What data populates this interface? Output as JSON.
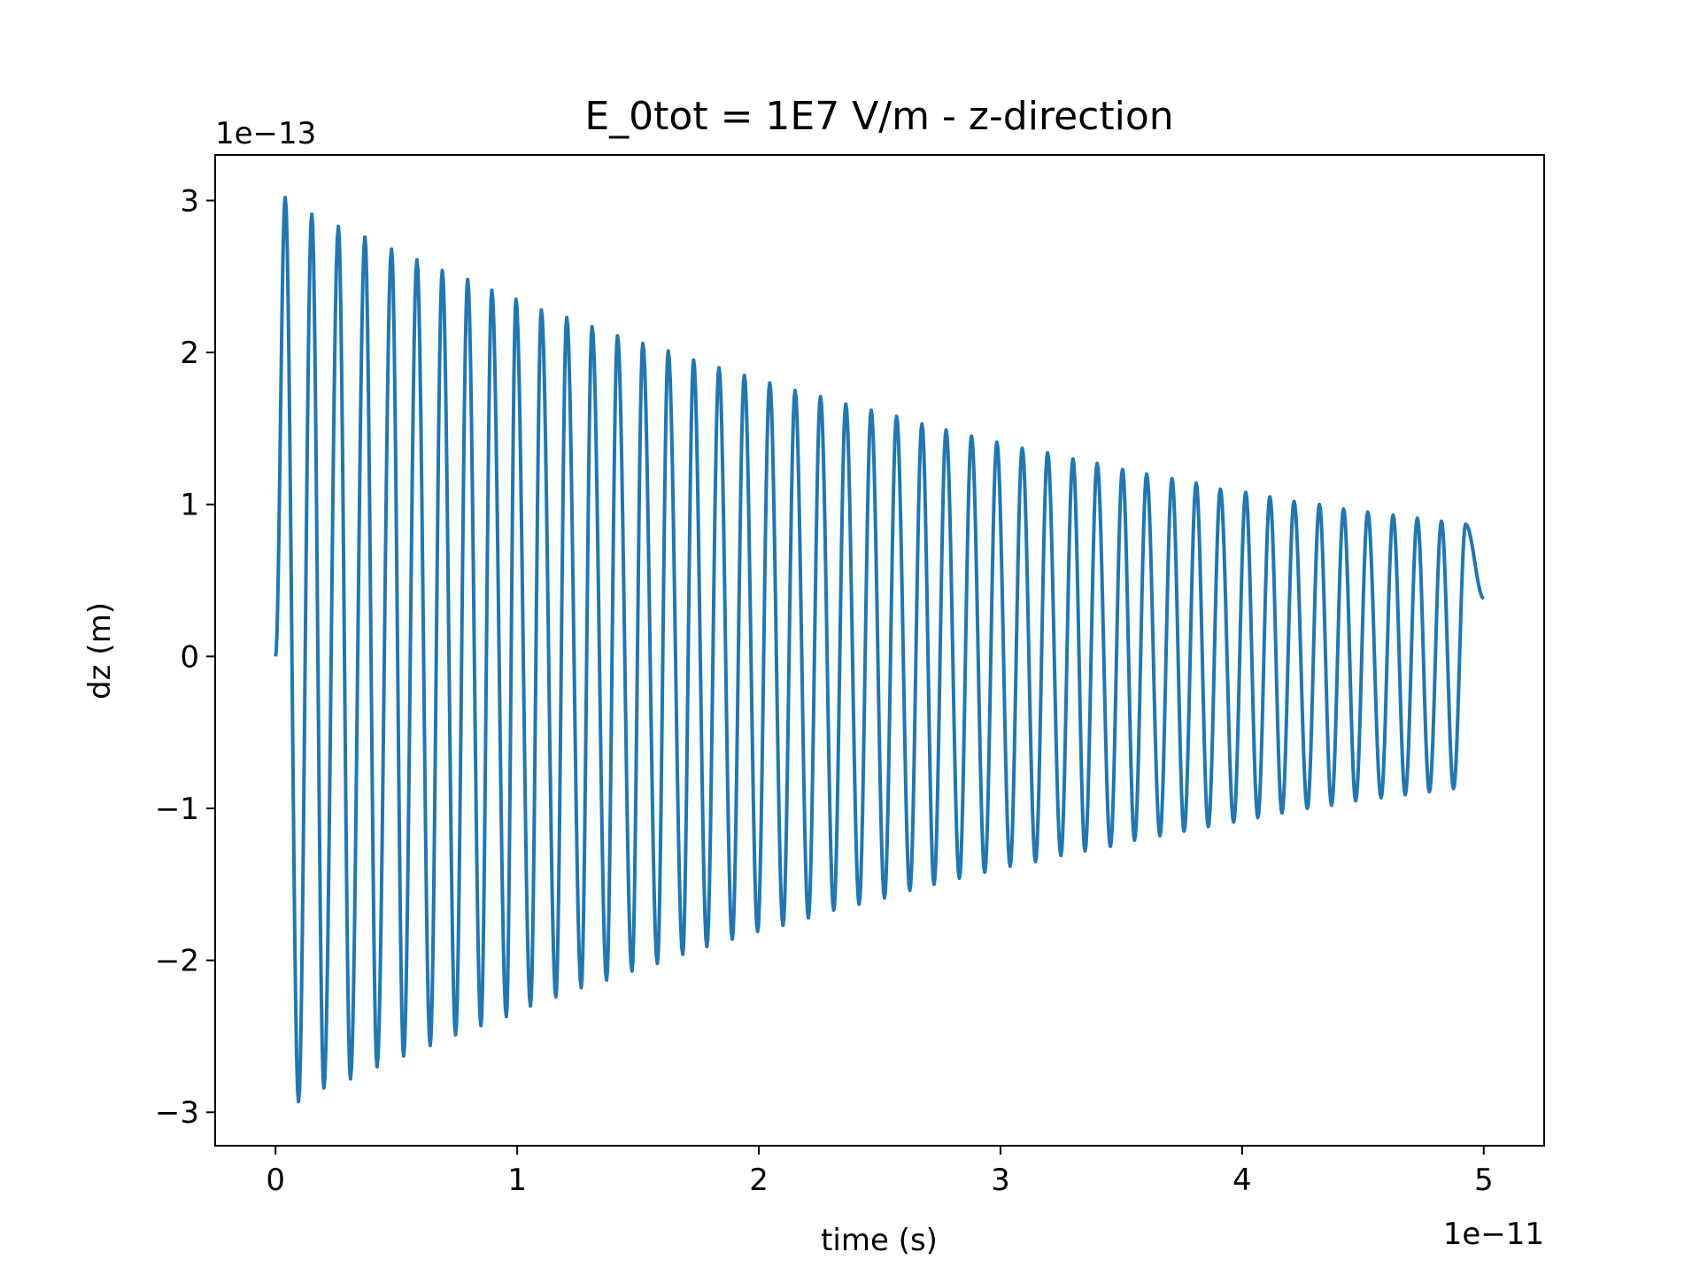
{
  "chart_data": {
    "type": "line",
    "title": "E_0tot = 1E7 V/m - z-direction",
    "xlabel": "time (s)",
    "ylabel": "dz (m)",
    "x_offset_label": "1e−11",
    "y_offset_label": "1e−13",
    "xlim": [
      -0.25,
      5.25
    ],
    "ylim": [
      -3.22,
      3.3
    ],
    "x_ticks": [
      0,
      1,
      2,
      3,
      4,
      5
    ],
    "x_tick_labels": [
      "0",
      "1",
      "2",
      "3",
      "4",
      "5"
    ],
    "y_ticks": [
      -3,
      -2,
      -1,
      0,
      1,
      2,
      3
    ],
    "y_tick_labels": [
      "−3",
      "−2",
      "−1",
      "0",
      "1",
      "2",
      "3"
    ],
    "grid": false,
    "legend": "none",
    "series_color": "#1f77b4",
    "series": [
      {
        "peaks_x": [
          0.04,
          0.15,
          0.26,
          0.37,
          0.48,
          0.585,
          0.69,
          0.795,
          0.895,
          0.995,
          1.1,
          1.205,
          1.31,
          1.415,
          1.52,
          1.625,
          1.73,
          1.835,
          1.94,
          2.045,
          2.15,
          2.255,
          2.36,
          2.465,
          2.57,
          2.675,
          2.775,
          2.88,
          2.985,
          3.09,
          3.195,
          3.3,
          3.4,
          3.505,
          3.605,
          3.71,
          3.81,
          3.91,
          4.015,
          4.115,
          4.215,
          4.32,
          4.42,
          4.52,
          4.625,
          4.725,
          4.825,
          4.925
        ],
        "peaks_y": [
          3.02,
          2.91,
          2.83,
          2.76,
          2.68,
          2.61,
          2.54,
          2.48,
          2.41,
          2.35,
          2.28,
          2.23,
          2.17,
          2.11,
          2.06,
          2.01,
          1.95,
          1.9,
          1.85,
          1.8,
          1.75,
          1.71,
          1.66,
          1.62,
          1.58,
          1.53,
          1.49,
          1.45,
          1.41,
          1.37,
          1.34,
          1.3,
          1.27,
          1.23,
          1.2,
          1.17,
          1.14,
          1.1,
          1.08,
          1.05,
          1.02,
          1.0,
          0.97,
          0.95,
          0.93,
          0.91,
          0.89,
          0.87
        ],
        "troughs_x": [
          0.095,
          0.2,
          0.31,
          0.42,
          0.53,
          0.64,
          0.745,
          0.85,
          0.955,
          1.055,
          1.16,
          1.265,
          1.37,
          1.475,
          1.58,
          1.685,
          1.785,
          1.89,
          1.995,
          2.1,
          2.205,
          2.31,
          2.415,
          2.52,
          2.625,
          2.725,
          2.83,
          2.935,
          3.04,
          3.145,
          3.25,
          3.35,
          3.455,
          3.555,
          3.66,
          3.76,
          3.86,
          3.965,
          4.065,
          4.165,
          4.27,
          4.37,
          4.47,
          4.575,
          4.675,
          4.775,
          4.875
        ],
        "troughs_y": [
          -2.93,
          -2.84,
          -2.78,
          -2.7,
          -2.63,
          -2.56,
          -2.49,
          -2.43,
          -2.37,
          -2.3,
          -2.24,
          -2.18,
          -2.13,
          -2.07,
          -2.02,
          -1.96,
          -1.91,
          -1.86,
          -1.81,
          -1.77,
          -1.72,
          -1.67,
          -1.63,
          -1.59,
          -1.54,
          -1.5,
          -1.46,
          -1.42,
          -1.38,
          -1.35,
          -1.31,
          -1.28,
          -1.25,
          -1.21,
          -1.18,
          -1.15,
          -1.12,
          -1.09,
          -1.06,
          -1.03,
          -1.0,
          -0.98,
          -0.95,
          -0.93,
          -0.91,
          -0.89,
          -0.87
        ],
        "start": [
          0.0,
          0.0
        ],
        "end": [
          5.0,
          0.38
        ]
      }
    ]
  }
}
